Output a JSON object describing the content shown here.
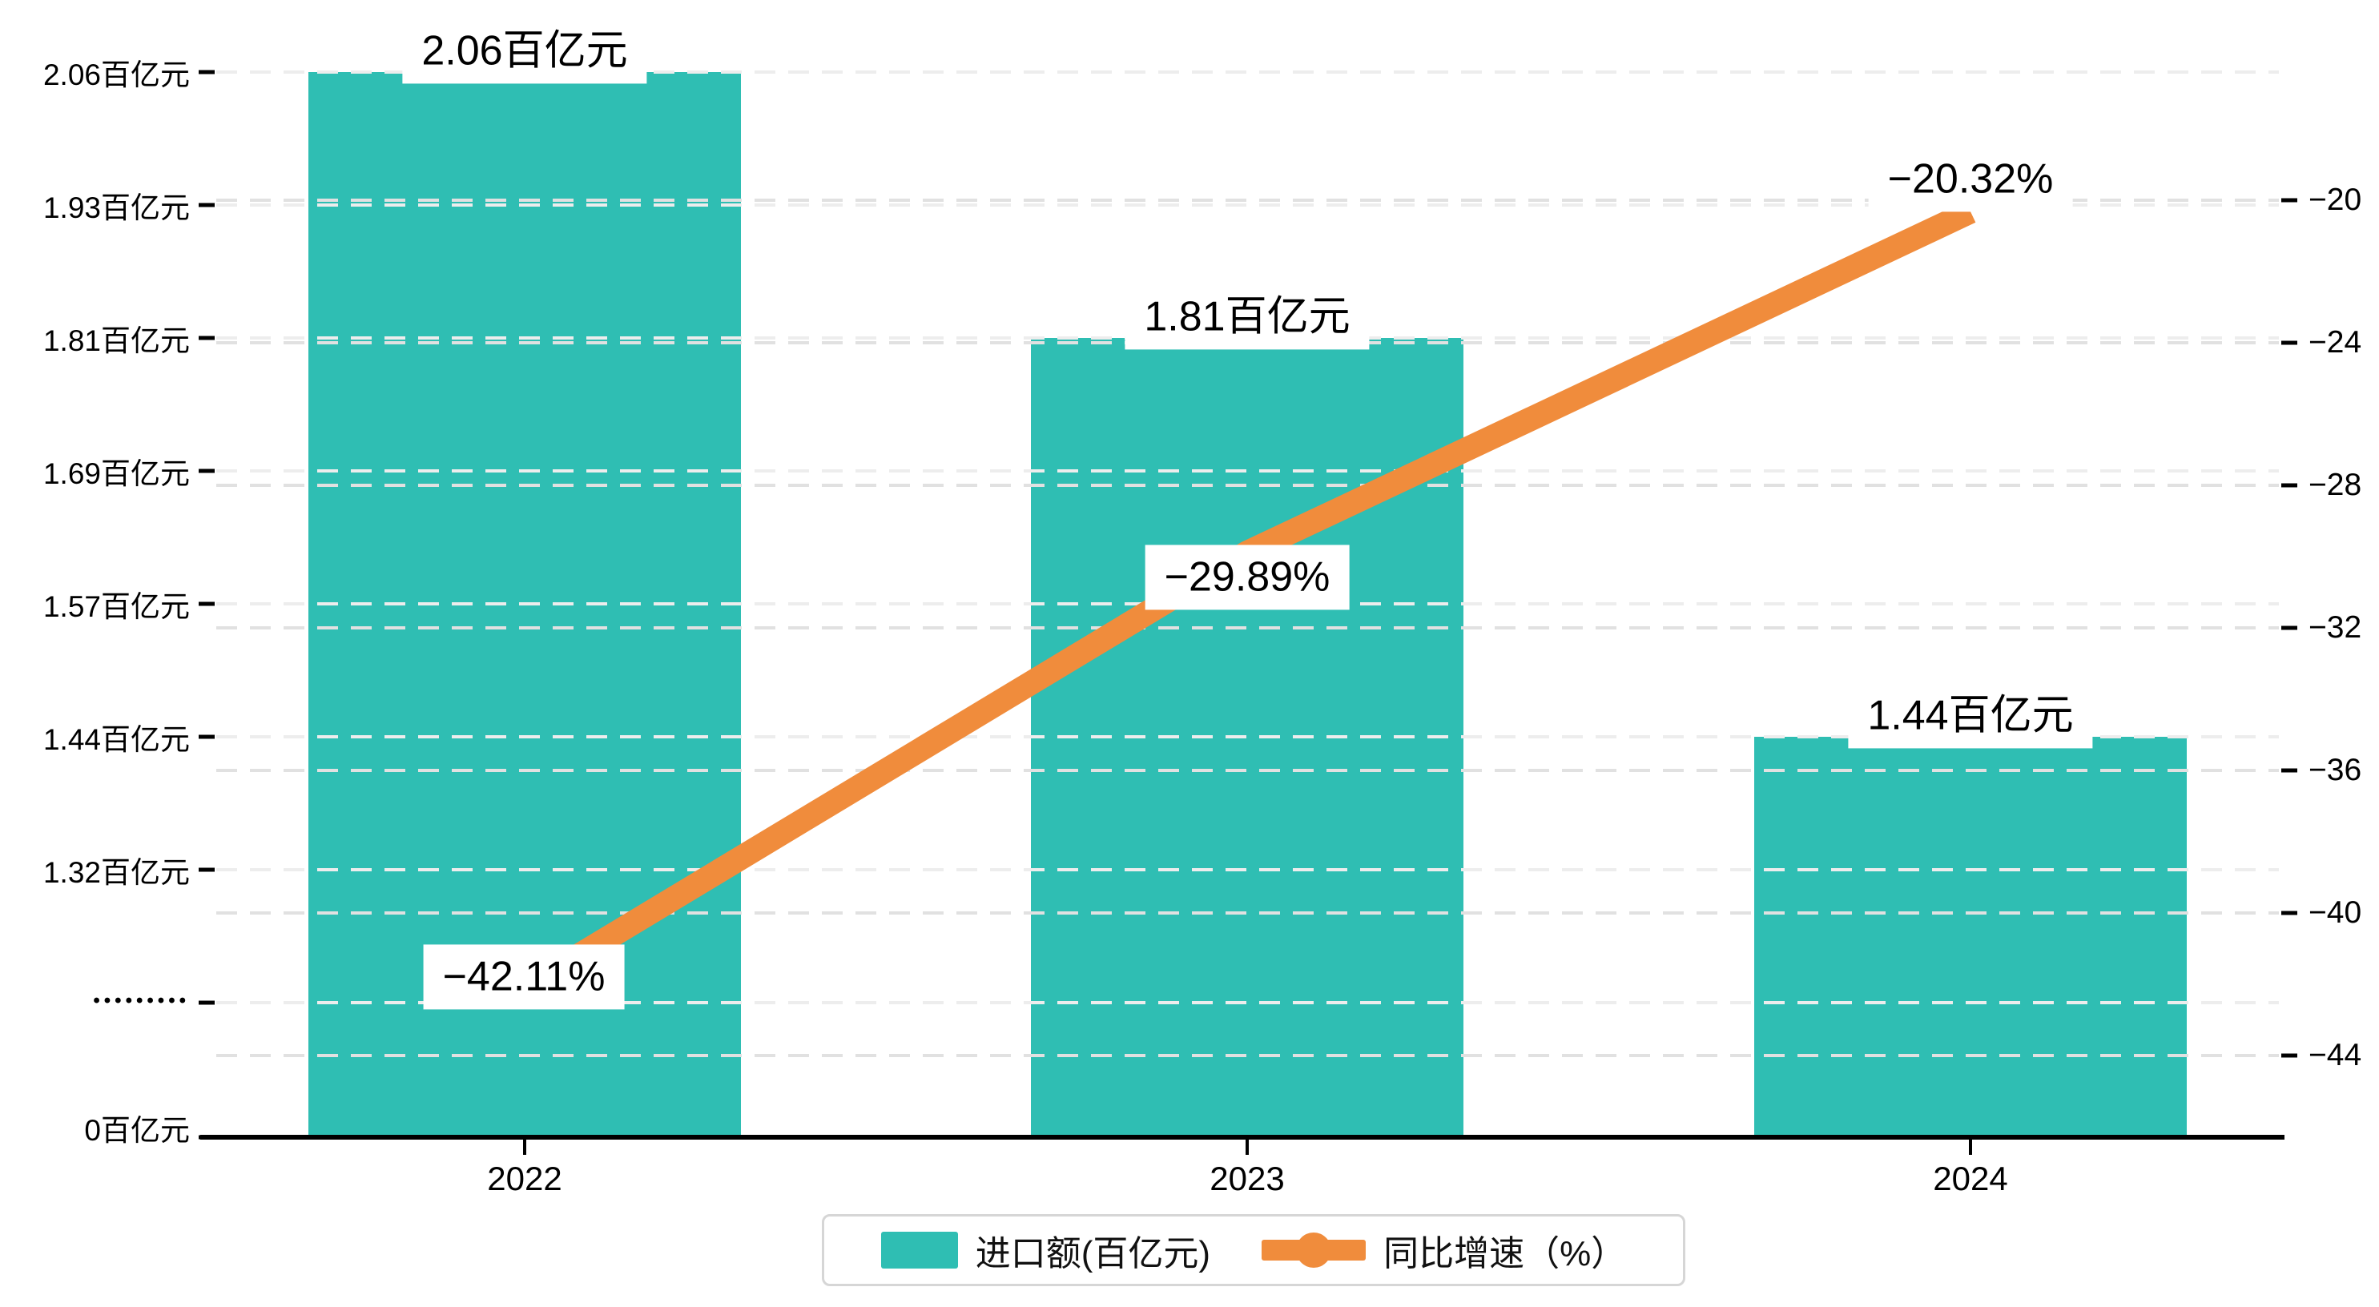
{
  "chart_data": {
    "type": "combo",
    "categories": [
      "2022",
      "2023",
      "2024"
    ],
    "series": [
      {
        "name": "进口额(百亿元)",
        "type": "bar",
        "values": [
          2.06,
          1.81,
          1.44
        ],
        "labels": [
          "2.06百亿元",
          "1.81百亿元",
          "1.44百亿元"
        ],
        "color": "#2FBEB3"
      },
      {
        "name": "同比增速（%）",
        "type": "line",
        "values": [
          -42.11,
          -29.89,
          -20.32
        ],
        "labels": [
          "−42.11%",
          "−29.89%",
          "−20.32%"
        ],
        "color": "#F08C3C"
      }
    ],
    "left_axis": {
      "ticks": [
        "2.06百亿元",
        "1.93百亿元",
        "1.81百亿元",
        "1.69百亿元",
        "1.57百亿元",
        "1.44百亿元",
        "1.32百亿元",
        "•••••••••",
        "0百亿元"
      ],
      "tick_values": [
        2.06,
        1.93,
        1.81,
        1.69,
        1.57,
        1.44,
        1.32,
        null,
        0
      ],
      "has_break": true
    },
    "right_axis": {
      "ticks": [
        "−20",
        "−24",
        "−28",
        "−32",
        "−36",
        "−40",
        "−44"
      ],
      "tick_values": [
        -20,
        -24,
        -28,
        -32,
        -36,
        -40,
        -44
      ]
    },
    "legend": {
      "items": [
        {
          "label": "进口额(百亿元)",
          "marker": "bar-swatch",
          "color": "#2FBEB3"
        },
        {
          "label": "同比增速（%）",
          "marker": "line-dot-swatch",
          "color": "#F08C3C"
        }
      ],
      "position": "bottom"
    },
    "grid": true,
    "colors": {
      "bar": "#2FBEB3",
      "line": "#F08C3C",
      "gridline_left": "#EDEDED",
      "gridline_right": "#E1E1E1",
      "axis": "#000000",
      "label_bg": "#FFFFFF"
    }
  }
}
